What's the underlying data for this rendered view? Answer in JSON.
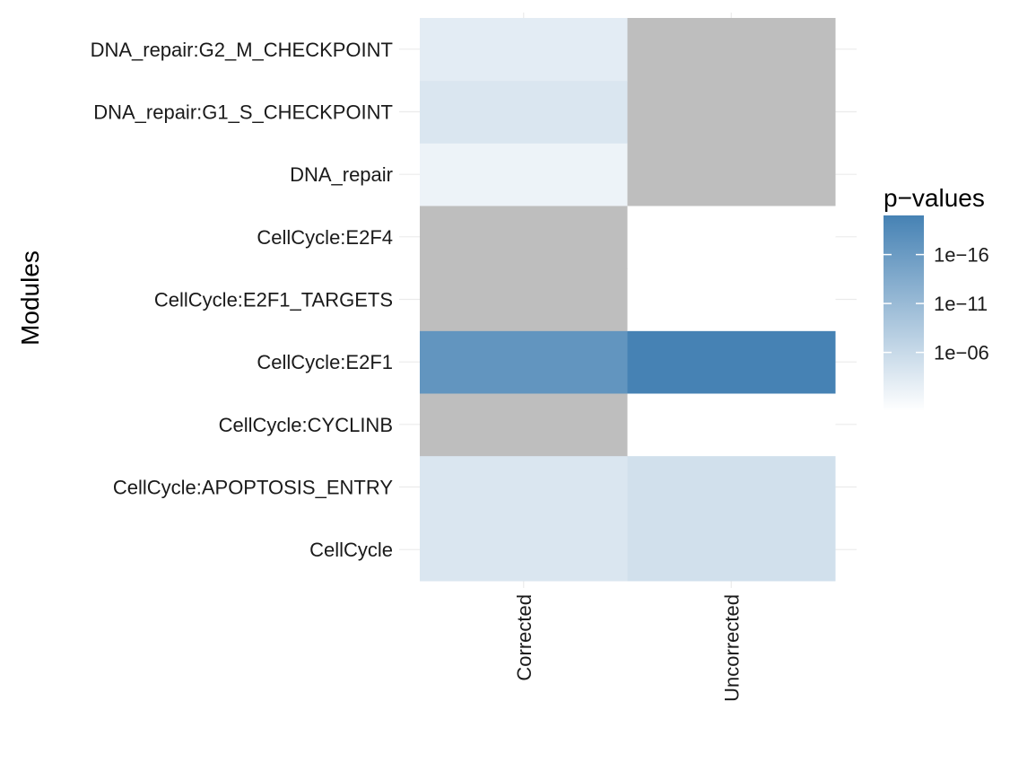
{
  "chart_data": {
    "type": "heatmap",
    "title": "",
    "xlabel": "",
    "ylabel": "Modules",
    "x_categories": [
      "Corrected",
      "Uncorrected"
    ],
    "y_categories": [
      "CellCycle",
      "CellCycle:APOPTOSIS_ENTRY",
      "CellCycle:CYCLINB",
      "CellCycle:E2F1",
      "CellCycle:E2F1_TARGETS",
      "CellCycle:E2F4",
      "DNA_repair",
      "DNA_repair:G1_S_CHECKPOINT",
      "DNA_repair:G2_M_CHECKPOINT"
    ],
    "cells": [
      {
        "x": "Corrected",
        "y": "CellCycle",
        "p_value": 0.0001
      },
      {
        "x": "Uncorrected",
        "y": "CellCycle",
        "p_value": 1e-05
      },
      {
        "x": "Corrected",
        "y": "CellCycle:APOPTOSIS_ENTRY",
        "p_value": 0.0001
      },
      {
        "x": "Uncorrected",
        "y": "CellCycle:APOPTOSIS_ENTRY",
        "p_value": 1e-05
      },
      {
        "x": "Corrected",
        "y": "CellCycle:CYCLINB",
        "p_value": null
      },
      {
        "x": "Uncorrected",
        "y": "CellCycle:CYCLINB",
        "p_value": 1
      },
      {
        "x": "Corrected",
        "y": "CellCycle:E2F1",
        "p_value": 1e-17
      },
      {
        "x": "Uncorrected",
        "y": "CellCycle:E2F1",
        "p_value": 1e-20
      },
      {
        "x": "Corrected",
        "y": "CellCycle:E2F1_TARGETS",
        "p_value": null
      },
      {
        "x": "Uncorrected",
        "y": "CellCycle:E2F1_TARGETS",
        "p_value": 1
      },
      {
        "x": "Corrected",
        "y": "CellCycle:E2F4",
        "p_value": null
      },
      {
        "x": "Uncorrected",
        "y": "CellCycle:E2F4",
        "p_value": 1
      },
      {
        "x": "Corrected",
        "y": "DNA_repair",
        "p_value": 0.01
      },
      {
        "x": "Uncorrected",
        "y": "DNA_repair",
        "p_value": null
      },
      {
        "x": "Corrected",
        "y": "DNA_repair:G1_S_CHECKPOINT",
        "p_value": 0.0001
      },
      {
        "x": "Uncorrected",
        "y": "DNA_repair:G1_S_CHECKPOINT",
        "p_value": null
      },
      {
        "x": "Corrected",
        "y": "DNA_repair:G2_M_CHECKPOINT",
        "p_value": 0.001
      },
      {
        "x": "Uncorrected",
        "y": "DNA_repair:G2_M_CHECKPOINT",
        "p_value": null
      }
    ],
    "legend": {
      "title": "p−values",
      "position": "right",
      "scale": "log10-reversed",
      "range": [
        1e-20,
        1
      ],
      "breaks": [
        1e-06,
        1e-11,
        1e-16
      ],
      "break_labels": [
        "1e−06",
        "1e−11",
        "1e−16"
      ],
      "low_color": "#ffffff",
      "high_color": "#4682b4",
      "na_color": "#bebebe"
    },
    "grid": true
  }
}
